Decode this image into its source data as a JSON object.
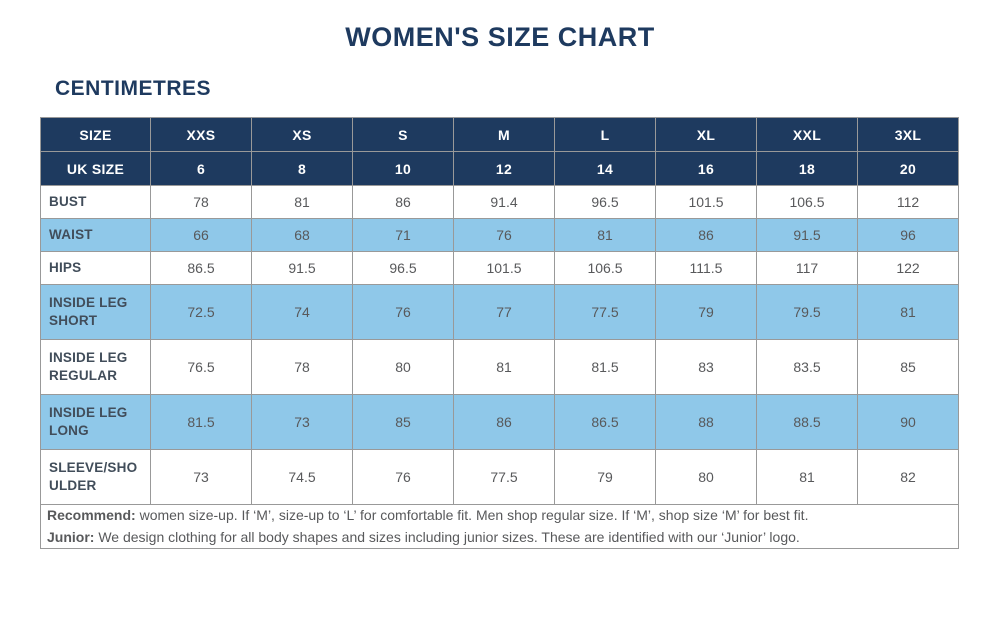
{
  "page": {
    "title": "WOMEN'S SIZE CHART",
    "unit_label": "CENTIMETRES"
  },
  "colors": {
    "navy_header": "#1e3a5f",
    "light_blue_row": "#8fc8e9",
    "border_gray": "#999999",
    "data_text": "#58595b",
    "label_text": "#414d5a",
    "title_text": "#1e3a5f"
  },
  "table": {
    "header_row_size": [
      "SIZE",
      "XXS",
      "XS",
      "S",
      "M",
      "L",
      "XL",
      "XXL",
      "3XL"
    ],
    "header_row_uk": [
      "UK SIZE",
      "6",
      "8",
      "10",
      "12",
      "14",
      "16",
      "18",
      "20"
    ],
    "rows": [
      {
        "label": "BUST",
        "highlight": false,
        "values": [
          "78",
          "81",
          "86",
          "91.4",
          "96.5",
          "101.5",
          "106.5",
          "112"
        ]
      },
      {
        "label": "WAIST",
        "highlight": true,
        "values": [
          "66",
          "68",
          "71",
          "76",
          "81",
          "86",
          "91.5",
          "96"
        ]
      },
      {
        "label": "HIPS",
        "highlight": false,
        "values": [
          "86.5",
          "91.5",
          "96.5",
          "101.5",
          "106.5",
          "111.5",
          "117",
          "122"
        ]
      },
      {
        "label": "INSIDE LEG SHORT",
        "highlight": true,
        "values": [
          "72.5",
          "74",
          "76",
          "77",
          "77.5",
          "79",
          "79.5",
          "81"
        ]
      },
      {
        "label": "INSIDE LEG REGULAR",
        "highlight": false,
        "values": [
          "76.5",
          "78",
          "80",
          "81",
          "81.5",
          "83",
          "83.5",
          "85"
        ]
      },
      {
        "label": "INSIDE LEG LONG",
        "highlight": true,
        "values": [
          "81.5",
          "73",
          "85",
          "86",
          "86.5",
          "88",
          "88.5",
          "90"
        ]
      },
      {
        "label": "SLEEVE/SHOULDER",
        "highlight": false,
        "values": [
          "73",
          "74.5",
          "76",
          "77.5",
          "79",
          "80",
          "81",
          "82"
        ]
      }
    ],
    "footnotes": [
      {
        "lead": "Recommend:",
        "text": " women size-up. If ‘M’, size-up to ‘L’ for comfortable fit. Men shop regular size. If ‘M’, shop size ‘M’ for best fit."
      },
      {
        "lead": "Junior:",
        "text": " We design clothing for all body shapes and sizes including junior sizes. These are identified with our ‘Junior’ logo."
      }
    ]
  }
}
